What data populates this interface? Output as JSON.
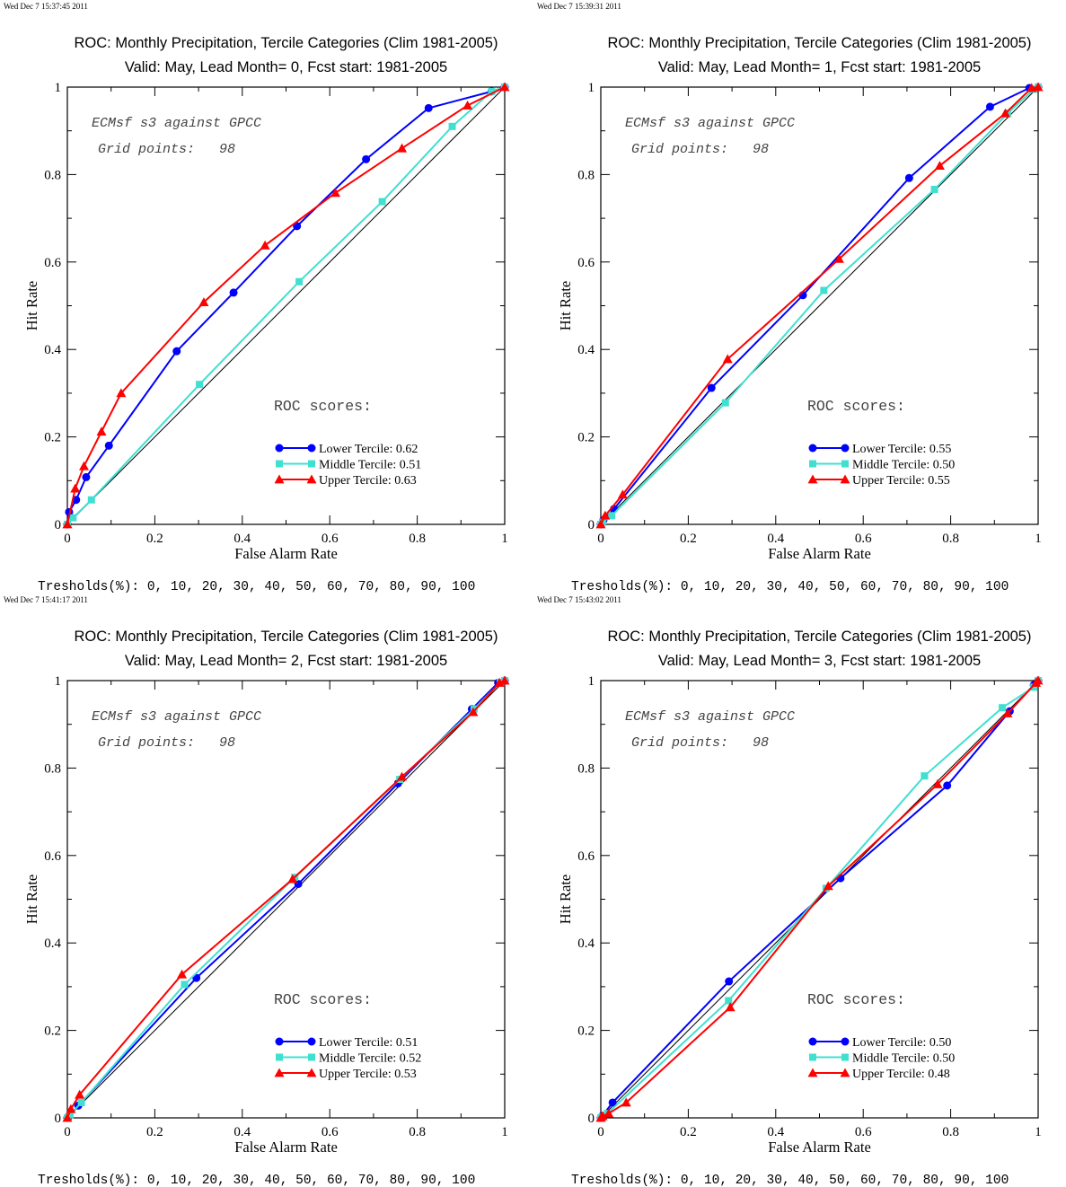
{
  "chart_data": [
    {
      "type": "line",
      "timestamp": "Wed Dec  7 15:37:45 2011",
      "title": "ROC: Monthly Precipitation, Tercile Categories (Clim 1981-2005)",
      "subtitle": "Valid: May, Lead Month= 0, Fcst start: 1981-2005",
      "xlabel": "False Alarm Rate",
      "ylabel": "Hit Rate",
      "xlim": [
        0,
        1
      ],
      "ylim": [
        0,
        1
      ],
      "xticks": [
        "0",
        "0.2",
        "0.4",
        "0.6",
        "0.8",
        "1"
      ],
      "yticks": [
        "0",
        "0.2",
        "0.4",
        "0.6",
        "0.8",
        "1"
      ],
      "annotation_line1": "ECMsf s3 against GPCC",
      "annotation_line2": "Grid points:   98",
      "scores_heading": "ROC scores:",
      "thresholds": "Tresholds(%): 0, 10, 20, 30, 40, 50, 60, 70, 80, 90, 100",
      "legend_position": "lower-right",
      "series": [
        {
          "name": "Lower Tercile: 0.62",
          "color": "#0000ff",
          "marker": "circle",
          "x": [
            0,
            0.004,
            0.02,
            0.043,
            0.095,
            0.25,
            0.38,
            0.525,
            0.683,
            0.826,
            0.97,
            1
          ],
          "y": [
            0,
            0.028,
            0.056,
            0.108,
            0.18,
            0.396,
            0.53,
            0.682,
            0.835,
            0.952,
            0.99,
            1
          ]
        },
        {
          "name": "Middle Tercile: 0.51",
          "color": "#40e0d0",
          "marker": "square",
          "x": [
            0,
            0.013,
            0.055,
            0.302,
            0.53,
            0.72,
            0.88,
            0.97,
            1
          ],
          "y": [
            0,
            0.015,
            0.056,
            0.32,
            0.555,
            0.738,
            0.91,
            0.99,
            1
          ],
          "vis_x": [
            0,
            0.013,
            0.055,
            0.302,
            0.53,
            0.72,
            0.88,
            0.97,
            1
          ]
        },
        {
          "name": "Upper Tercile: 0.63",
          "color": "#ff0000",
          "marker": "triangle",
          "x": [
            0,
            0.018,
            0.038,
            0.078,
            0.123,
            0.312,
            0.452,
            0.613,
            0.765,
            0.915,
            1
          ],
          "y": [
            0,
            0.082,
            0.133,
            0.212,
            0.3,
            0.508,
            0.638,
            0.758,
            0.86,
            0.958,
            1
          ]
        }
      ]
    },
    {
      "type": "line",
      "timestamp": "Wed Dec  7 15:39:31 2011",
      "title": "ROC: Monthly Precipitation, Tercile Categories (Clim 1981-2005)",
      "subtitle": "Valid: May, Lead Month= 1, Fcst start: 1981-2005",
      "xlabel": "False Alarm Rate",
      "ylabel": "Hit Rate",
      "xlim": [
        0,
        1
      ],
      "ylim": [
        0,
        1
      ],
      "xticks": [
        "0",
        "0.2",
        "0.4",
        "0.6",
        "0.8",
        "1"
      ],
      "yticks": [
        "0",
        "0.2",
        "0.4",
        "0.6",
        "0.8",
        "1"
      ],
      "annotation_line1": "ECMsf s3 against GPCC",
      "annotation_line2": "Grid points:   98",
      "scores_heading": "ROC scores:",
      "thresholds": "Tresholds(%): 0, 10, 20, 30, 40, 50, 60, 70, 80, 90, 100",
      "legend_position": "lower-right",
      "series": [
        {
          "name": "Lower Tercile: 0.55",
          "color": "#0000ff",
          "marker": "circle",
          "x": [
            0,
            0.006,
            0.03,
            0.253,
            0.462,
            0.705,
            0.89,
            0.98,
            1
          ],
          "y": [
            0,
            0.01,
            0.035,
            0.312,
            0.524,
            0.792,
            0.955,
            0.998,
            1
          ]
        },
        {
          "name": "Middle Tercile: 0.50",
          "color": "#40e0d0",
          "marker": "square",
          "x": [
            0,
            0.004,
            0.025,
            0.285,
            0.51,
            0.763,
            0.93,
            0.99,
            1
          ],
          "y": [
            0,
            0.005,
            0.02,
            0.278,
            0.535,
            0.766,
            0.94,
            0.995,
            1
          ]
        },
        {
          "name": "Upper Tercile: 0.55",
          "color": "#ff0000",
          "marker": "triangle",
          "x": [
            0,
            0.01,
            0.05,
            0.29,
            0.545,
            0.775,
            0.925,
            0.985,
            1
          ],
          "y": [
            0,
            0.02,
            0.068,
            0.378,
            0.607,
            0.82,
            0.94,
            0.998,
            1
          ]
        }
      ]
    },
    {
      "type": "line",
      "timestamp": "Wed Dec  7 15:41:17 2011",
      "title": "ROC: Monthly Precipitation, Tercile Categories (Clim 1981-2005)",
      "subtitle": "Valid: May, Lead Month= 2, Fcst start: 1981-2005",
      "xlabel": "False Alarm Rate",
      "ylabel": "Hit Rate",
      "xlim": [
        0,
        1
      ],
      "ylim": [
        0,
        1
      ],
      "xticks": [
        "0",
        "0.2",
        "0.4",
        "0.6",
        "0.8",
        "1"
      ],
      "yticks": [
        "0",
        "0.2",
        "0.4",
        "0.6",
        "0.8",
        "1"
      ],
      "annotation_line1": "ECMsf s3 against GPCC",
      "annotation_line2": "Grid points:   98",
      "scores_heading": "ROC scores:",
      "thresholds": "Tresholds(%): 0, 10, 20, 30, 40, 50, 60, 70, 80, 90, 100",
      "legend_position": "lower-right",
      "series": [
        {
          "name": "Lower Tercile: 0.51",
          "color": "#0000ff",
          "marker": "circle",
          "x": [
            0,
            0.004,
            0.025,
            0.295,
            0.528,
            0.756,
            0.925,
            0.985,
            1
          ],
          "y": [
            0,
            0.004,
            0.028,
            0.32,
            0.535,
            0.765,
            0.935,
            0.995,
            1
          ]
        },
        {
          "name": "Middle Tercile: 0.52",
          "color": "#40e0d0",
          "marker": "square",
          "x": [
            0,
            0.006,
            0.032,
            0.268,
            0.52,
            0.76,
            0.93,
            0.99,
            1
          ],
          "y": [
            0,
            0.007,
            0.035,
            0.305,
            0.55,
            0.774,
            0.935,
            0.996,
            1
          ]
        },
        {
          "name": "Upper Tercile: 0.53",
          "color": "#ff0000",
          "marker": "triangle",
          "x": [
            0,
            0.008,
            0.028,
            0.262,
            0.515,
            0.765,
            0.928,
            0.988,
            1
          ],
          "y": [
            0,
            0.02,
            0.053,
            0.328,
            0.546,
            0.78,
            0.928,
            0.995,
            1
          ]
        }
      ]
    },
    {
      "type": "line",
      "timestamp": "Wed Dec  7 15:43:02 2011",
      "title": "ROC: Monthly Precipitation, Tercile Categories (Clim 1981-2005)",
      "subtitle": "Valid: May, Lead Month= 3, Fcst start: 1981-2005",
      "xlabel": "False Alarm Rate",
      "ylabel": "Hit Rate",
      "xlim": [
        0,
        1
      ],
      "ylim": [
        0,
        1
      ],
      "xticks": [
        "0",
        "0.2",
        "0.4",
        "0.6",
        "0.8",
        "1"
      ],
      "yticks": [
        "0",
        "0.2",
        "0.4",
        "0.6",
        "0.8",
        "1"
      ],
      "annotation_line1": "ECMsf s3 against GPCC",
      "annotation_line2": "Grid points:   98",
      "scores_heading": "ROC scores:",
      "thresholds": "Tresholds(%): 0, 10, 20, 30, 40, 50, 60, 70, 80, 90, 100",
      "legend_position": "lower-right",
      "series": [
        {
          "name": "Lower Tercile: 0.50",
          "color": "#0000ff",
          "marker": "circle",
          "x": [
            0,
            0.003,
            0.027,
            0.293,
            0.548,
            0.792,
            0.935,
            0.99,
            1
          ],
          "y": [
            0,
            0.004,
            0.035,
            0.312,
            0.548,
            0.76,
            0.93,
            0.99,
            1
          ]
        },
        {
          "name": "Middle Tercile: 0.50",
          "color": "#40e0d0",
          "marker": "square",
          "x": [
            0,
            0.003,
            0.015,
            0.292,
            0.515,
            0.74,
            0.918,
            0.99,
            1
          ],
          "y": [
            0,
            0.002,
            0.01,
            0.268,
            0.525,
            0.782,
            0.938,
            0.985,
            1
          ]
        },
        {
          "name": "Upper Tercile: 0.48",
          "color": "#ff0000",
          "marker": "triangle",
          "x": [
            0,
            0.004,
            0.018,
            0.058,
            0.296,
            0.52,
            0.77,
            0.93,
            0.995,
            1
          ],
          "y": [
            0,
            0.004,
            0.01,
            0.035,
            0.253,
            0.53,
            0.763,
            0.925,
            0.995,
            1
          ]
        }
      ]
    }
  ]
}
